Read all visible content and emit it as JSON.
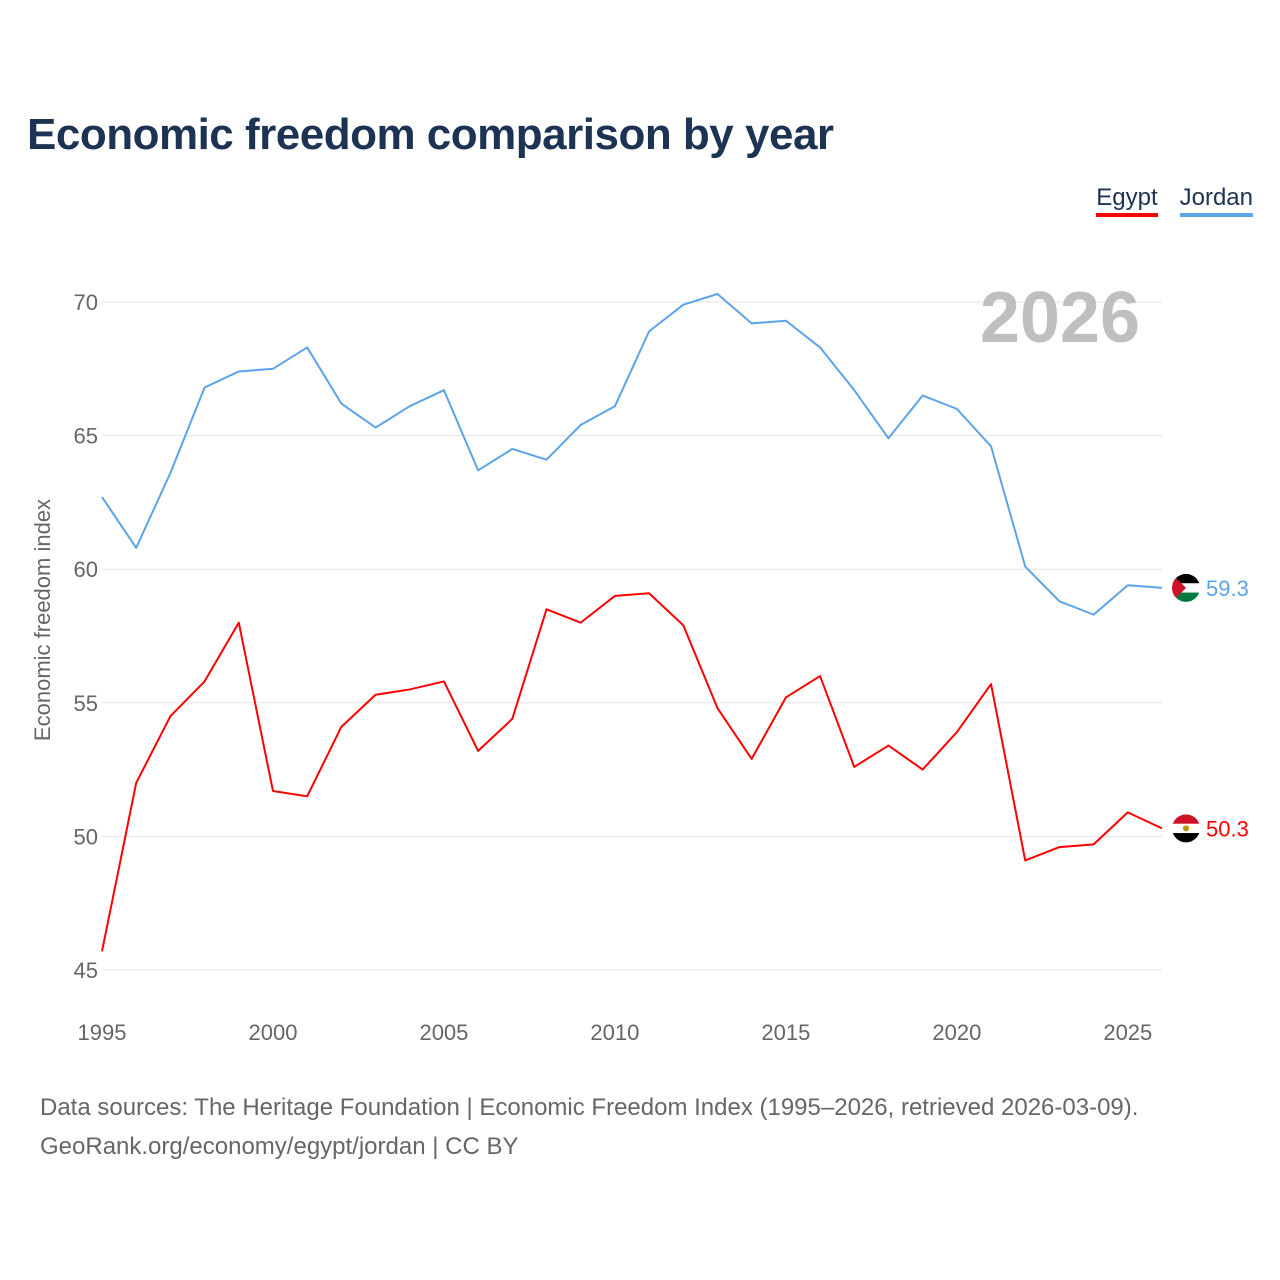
{
  "chart_data": {
    "type": "line",
    "title": "Economic freedom comparison by year",
    "ylabel": "Economic freedom index",
    "xlabel": "",
    "xlim": [
      1995,
      2026
    ],
    "ylim": [
      45,
      70
    ],
    "x_ticks": [
      1995,
      2000,
      2005,
      2010,
      2015,
      2020,
      2025
    ],
    "y_ticks": [
      45,
      50,
      55,
      60,
      65,
      70
    ],
    "grid": true,
    "legend_position": "top-right",
    "year_label": "2026",
    "x": [
      1995,
      1996,
      1997,
      1998,
      1999,
      2000,
      2001,
      2002,
      2003,
      2004,
      2005,
      2006,
      2007,
      2008,
      2009,
      2010,
      2011,
      2012,
      2013,
      2014,
      2015,
      2016,
      2017,
      2018,
      2019,
      2020,
      2021,
      2022,
      2023,
      2024,
      2025,
      2026
    ],
    "series": [
      {
        "name": "Egypt",
        "color": "#ff0000",
        "end_label": "50.3",
        "values": [
          45.7,
          52.0,
          54.5,
          55.8,
          58.0,
          51.7,
          51.5,
          54.1,
          55.3,
          55.5,
          55.8,
          53.2,
          54.4,
          58.5,
          58.0,
          59.0,
          59.1,
          57.9,
          54.8,
          52.9,
          55.2,
          56.0,
          52.6,
          53.4,
          52.5,
          53.9,
          55.7,
          49.1,
          49.6,
          49.7,
          50.9,
          50.3
        ]
      },
      {
        "name": "Jordan",
        "color": "#5ba4ea",
        "end_label": "59.3",
        "values": [
          62.7,
          60.8,
          63.6,
          66.8,
          67.4,
          67.5,
          68.3,
          66.2,
          65.3,
          66.1,
          66.7,
          63.7,
          64.5,
          64.1,
          65.4,
          66.1,
          68.9,
          69.9,
          70.3,
          69.2,
          69.3,
          68.3,
          66.7,
          64.9,
          66.5,
          66.0,
          64.6,
          60.1,
          58.8,
          58.3,
          59.4,
          59.3
        ]
      }
    ]
  },
  "footer": {
    "line1": "Data sources: The Heritage Foundation | Economic Freedom Index (1995–2026, retrieved 2026-03-09).",
    "line2": "GeoRank.org/economy/egypt/jordan | CC BY"
  }
}
